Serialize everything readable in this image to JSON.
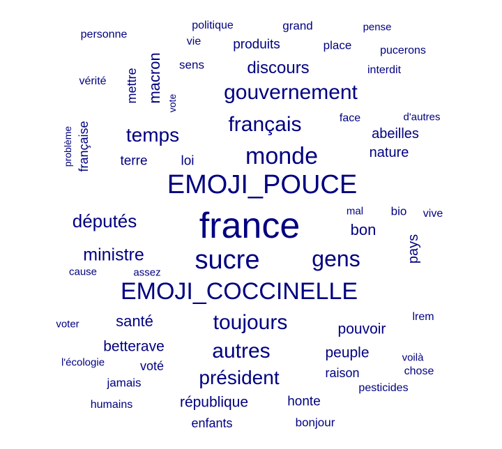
{
  "color": "#000080",
  "words": [
    "personne",
    "politique",
    "grand",
    "pense",
    "vie",
    "produits",
    "place",
    "pucerons",
    "sens",
    "discours",
    "interdit",
    "vérité",
    "mettre",
    "macron",
    "vote",
    "gouvernement",
    "face",
    "d'autres",
    "français",
    "problème",
    "française",
    "temps",
    "abeilles",
    "monde",
    "nature",
    "terre",
    "loi",
    "EMOJI_POUCE",
    "mal",
    "bio",
    "vive",
    "france",
    "députés",
    "bon",
    "pays",
    "ministre",
    "sucre",
    "gens",
    "cause",
    "assez",
    "EMOJI_COCCINELLE",
    "lrem",
    "voter",
    "santé",
    "toujours",
    "pouvoir",
    "betterave",
    "autres",
    "peuple",
    "voilà",
    "l'écologie",
    "voté",
    "chose",
    "raison",
    "président",
    "jamais",
    "pesticides",
    "humains",
    "république",
    "honte",
    "enfants",
    "bonjour"
  ]
}
